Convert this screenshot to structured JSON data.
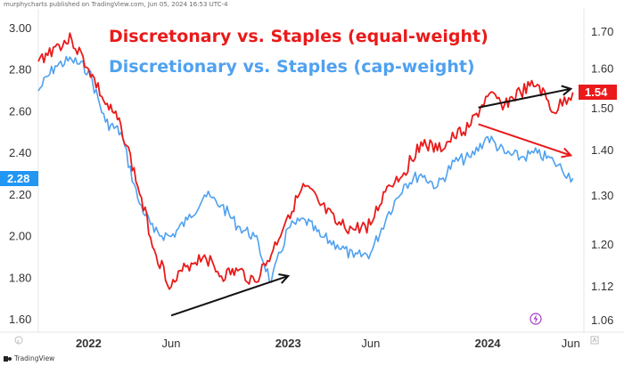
{
  "header": {
    "publisher_text": "murphycharts published on TradingView.com, Jun 05, 2024 16:53 UTC-4"
  },
  "footer": {
    "logo_text": "TradingView"
  },
  "colors": {
    "equal_weight": "#ea1a1a",
    "cap_weight": "#4fa1f0",
    "annotation_black": "#111111",
    "annotation_red": "#ea1a1a",
    "left_badge": "#2196f3",
    "right_badge": "#ea1a1a"
  },
  "chart_data": {
    "type": "line",
    "title": "Discretonary vs. Staples (equal-weight)",
    "subtitle": "Discretionary vs. Staples (cap-weight)",
    "x_range": [
      "2021-10",
      "2024-06-25"
    ],
    "x_tick_labels": [
      "2022",
      "Jun",
      "2023",
      "Jun",
      "2024",
      "Jun"
    ],
    "x_tick_dates": [
      "2022-01-01",
      "2022-06-01",
      "2023-01-01",
      "2023-06-01",
      "2024-01-01",
      "2024-06-01"
    ],
    "x_tick_bold": [
      true,
      false,
      true,
      false,
      true,
      false
    ],
    "left_axis": {
      "ticks": [
        "3.00",
        "2.80",
        "2.60",
        "2.40",
        "2.20",
        "2.00",
        "1.80",
        "1.60"
      ],
      "range": [
        1.6,
        3.0
      ]
    },
    "right_axis": {
      "ticks": [
        "1.70",
        "1.60",
        "1.50",
        "1.40",
        "1.30",
        "1.20",
        "1.12",
        "1.06"
      ],
      "scale": "log",
      "range": [
        1.04,
        1.74
      ]
    },
    "left_badge": "2.28",
    "right_badge": "1.54",
    "series": [
      {
        "name": "Discretonary vs. Staples (equal-weight)",
        "axis": "right",
        "points": [
          [
            "2021-10-01",
            1.62
          ],
          [
            "2021-11-01",
            1.66
          ],
          [
            "2021-12-01",
            1.68
          ],
          [
            "2022-01-01",
            1.6
          ],
          [
            "2022-02-01",
            1.51
          ],
          [
            "2022-03-01",
            1.46
          ],
          [
            "2022-04-01",
            1.32
          ],
          [
            "2022-05-01",
            1.19
          ],
          [
            "2022-06-01",
            1.12
          ],
          [
            "2022-07-01",
            1.16
          ],
          [
            "2022-08-01",
            1.18
          ],
          [
            "2022-09-01",
            1.14
          ],
          [
            "2022-10-01",
            1.15
          ],
          [
            "2022-11-01",
            1.13
          ],
          [
            "2022-12-01",
            1.18
          ],
          [
            "2023-01-01",
            1.26
          ],
          [
            "2023-02-01",
            1.32
          ],
          [
            "2023-03-01",
            1.28
          ],
          [
            "2023-04-01",
            1.24
          ],
          [
            "2023-05-01",
            1.23
          ],
          [
            "2023-06-01",
            1.24
          ],
          [
            "2023-07-01",
            1.32
          ],
          [
            "2023-08-01",
            1.35
          ],
          [
            "2023-09-01",
            1.42
          ],
          [
            "2023-10-01",
            1.4
          ],
          [
            "2023-11-01",
            1.43
          ],
          [
            "2023-12-01",
            1.46
          ],
          [
            "2024-01-01",
            1.53
          ],
          [
            "2024-02-01",
            1.51
          ],
          [
            "2024-03-01",
            1.54
          ],
          [
            "2024-04-01",
            1.56
          ],
          [
            "2024-05-01",
            1.49
          ],
          [
            "2024-06-05",
            1.54
          ]
        ]
      },
      {
        "name": "Discretionary vs. Staples (cap-weight)",
        "axis": "left",
        "points": [
          [
            "2021-10-01",
            2.7
          ],
          [
            "2021-11-01",
            2.82
          ],
          [
            "2021-12-01",
            2.85
          ],
          [
            "2022-01-01",
            2.8
          ],
          [
            "2022-02-01",
            2.55
          ],
          [
            "2022-03-01",
            2.5
          ],
          [
            "2022-04-01",
            2.18
          ],
          [
            "2022-05-01",
            2.02
          ],
          [
            "2022-06-01",
            2.0
          ],
          [
            "2022-07-01",
            2.08
          ],
          [
            "2022-08-01",
            2.2
          ],
          [
            "2022-09-01",
            2.15
          ],
          [
            "2022-10-01",
            2.05
          ],
          [
            "2022-11-01",
            2.0
          ],
          [
            "2022-12-01",
            1.78
          ],
          [
            "2023-01-01",
            2.04
          ],
          [
            "2023-02-01",
            2.08
          ],
          [
            "2023-03-01",
            2.0
          ],
          [
            "2023-04-01",
            1.96
          ],
          [
            "2023-05-01",
            1.9
          ],
          [
            "2023-06-01",
            1.92
          ],
          [
            "2023-07-01",
            2.1
          ],
          [
            "2023-08-01",
            2.25
          ],
          [
            "2023-09-01",
            2.3
          ],
          [
            "2023-10-01",
            2.24
          ],
          [
            "2023-11-01",
            2.36
          ],
          [
            "2023-12-01",
            2.38
          ],
          [
            "2024-01-01",
            2.48
          ],
          [
            "2024-02-01",
            2.4
          ],
          [
            "2024-03-01",
            2.38
          ],
          [
            "2024-04-01",
            2.4
          ],
          [
            "2024-05-01",
            2.36
          ],
          [
            "2024-06-05",
            2.28
          ]
        ]
      }
    ],
    "annotations": [
      {
        "type": "trend-line",
        "color": "black",
        "arrow": true,
        "from": [
          "2022-06-01",
          1.62
        ],
        "to": [
          "2023-01-01",
          1.81
        ],
        "axis": "left"
      },
      {
        "type": "trend-line",
        "color": "black",
        "arrow": true,
        "from": [
          "2023-12-15",
          2.62
        ],
        "to": [
          "2024-06-01",
          2.71
        ],
        "axis": "left"
      },
      {
        "type": "trend-line",
        "color": "red",
        "arrow": true,
        "from": [
          "2023-12-15",
          2.54
        ],
        "to": [
          "2024-06-01",
          2.39
        ],
        "axis": "left"
      }
    ],
    "grid": false,
    "legend": "top-left (title text)"
  }
}
